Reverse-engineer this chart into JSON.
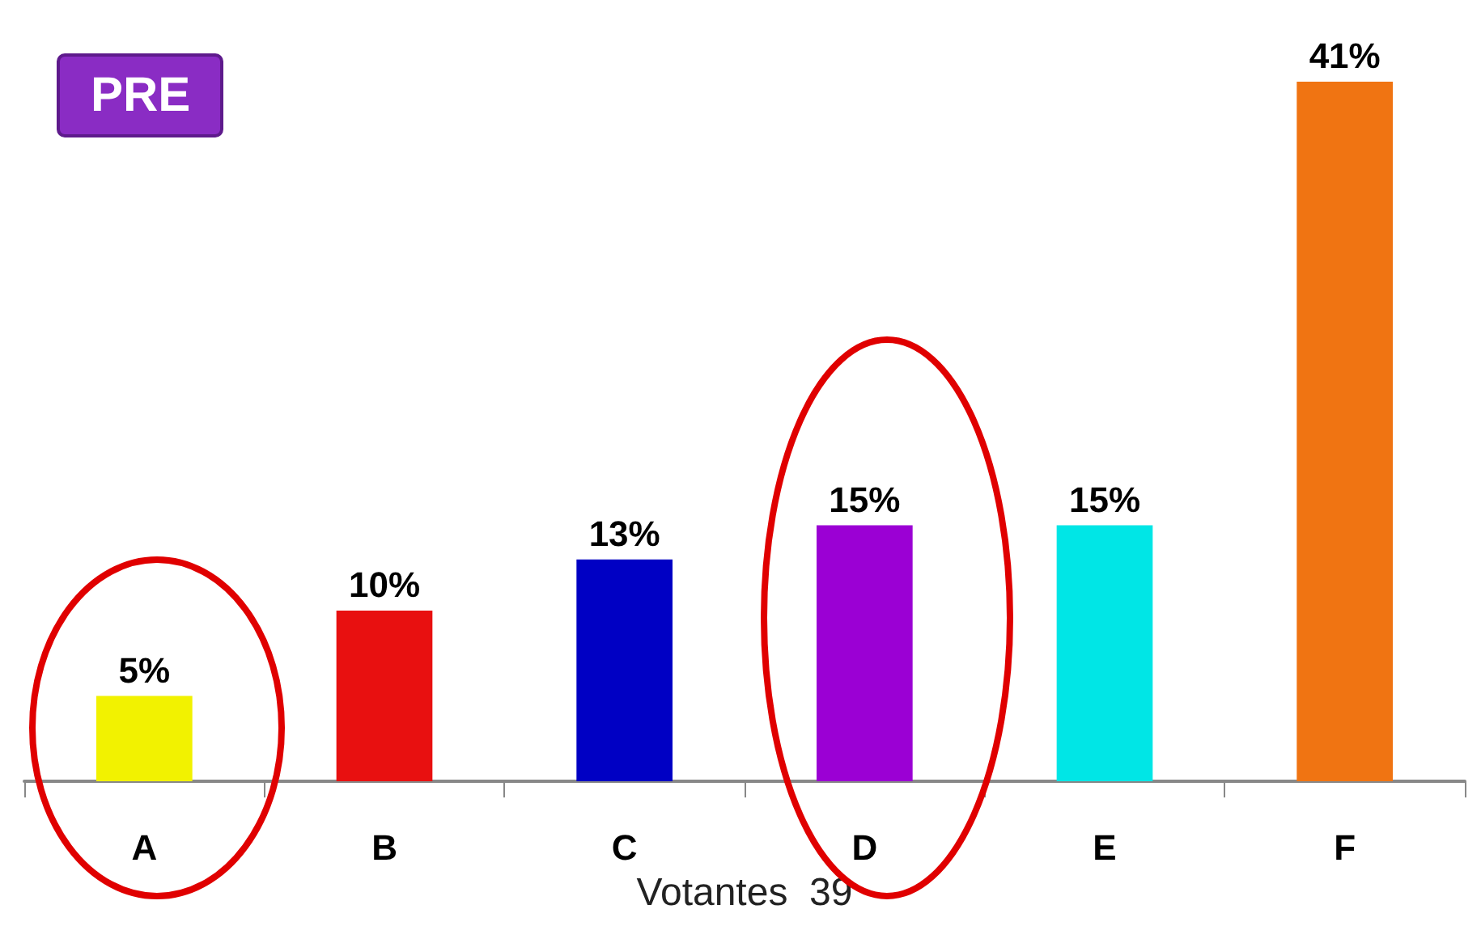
{
  "chart_data": {
    "type": "bar",
    "title": "PRE",
    "xlabel": "Votantes  39",
    "categories": [
      "A",
      "B",
      "C",
      "D",
      "E",
      "F"
    ],
    "values": [
      5,
      10,
      13,
      15,
      15,
      41
    ],
    "colors": [
      "#f2f200",
      "#e81010",
      "#0000c4",
      "#9b00d4",
      "#00e6e6",
      "#f07412"
    ],
    "value_labels": [
      "5%",
      "10%",
      "13%",
      "15%",
      "15%",
      "41%"
    ],
    "grid": false
  }
}
